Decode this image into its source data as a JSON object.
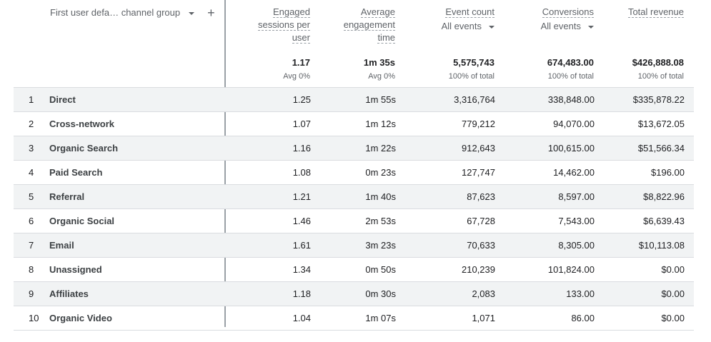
{
  "dimension": {
    "label": "First user defa… channel group",
    "add_label": "+"
  },
  "columns": [
    {
      "key": "engaged",
      "title_lines": [
        "Engaged",
        "sessions per",
        "user"
      ],
      "total": "1.17",
      "total_sub": "Avg 0%"
    },
    {
      "key": "avg_time",
      "title_lines": [
        "Average",
        "engagement",
        "time"
      ],
      "total": "1m 35s",
      "total_sub": "Avg 0%"
    },
    {
      "key": "events",
      "title_lines": [
        "Event count"
      ],
      "selector": "All events",
      "total": "5,575,743",
      "total_sub": "100% of total"
    },
    {
      "key": "conversions",
      "title_lines": [
        "Conversions"
      ],
      "selector": "All events",
      "total": "674,483.00",
      "total_sub": "100% of total"
    },
    {
      "key": "revenue",
      "title_lines": [
        "Total revenue"
      ],
      "total": "$426,888.08",
      "total_sub": "100% of total"
    }
  ],
  "rows": [
    {
      "index": "1",
      "name": "Direct",
      "engaged": "1.25",
      "avg_time": "1m 55s",
      "events": "3,316,764",
      "conversions": "338,848.00",
      "revenue": "$335,878.22"
    },
    {
      "index": "2",
      "name": "Cross-network",
      "engaged": "1.07",
      "avg_time": "1m 12s",
      "events": "779,212",
      "conversions": "94,070.00",
      "revenue": "$13,672.05"
    },
    {
      "index": "3",
      "name": "Organic Search",
      "engaged": "1.16",
      "avg_time": "1m 22s",
      "events": "912,643",
      "conversions": "100,615.00",
      "revenue": "$51,566.34"
    },
    {
      "index": "4",
      "name": "Paid Search",
      "engaged": "1.08",
      "avg_time": "0m 23s",
      "events": "127,747",
      "conversions": "14,462.00",
      "revenue": "$196.00"
    },
    {
      "index": "5",
      "name": "Referral",
      "engaged": "1.21",
      "avg_time": "1m 40s",
      "events": "87,623",
      "conversions": "8,597.00",
      "revenue": "$8,822.96"
    },
    {
      "index": "6",
      "name": "Organic Social",
      "engaged": "1.46",
      "avg_time": "2m 53s",
      "events": "67,728",
      "conversions": "7,543.00",
      "revenue": "$6,639.43"
    },
    {
      "index": "7",
      "name": "Email",
      "engaged": "1.61",
      "avg_time": "3m 23s",
      "events": "70,633",
      "conversions": "8,305.00",
      "revenue": "$10,113.08"
    },
    {
      "index": "8",
      "name": "Unassigned",
      "engaged": "1.34",
      "avg_time": "0m 50s",
      "events": "210,239",
      "conversions": "101,824.00",
      "revenue": "$0.00"
    },
    {
      "index": "9",
      "name": "Affiliates",
      "engaged": "1.18",
      "avg_time": "0m 30s",
      "events": "2,083",
      "conversions": "133.00",
      "revenue": "$0.00"
    },
    {
      "index": "10",
      "name": "Organic Video",
      "engaged": "1.04",
      "avg_time": "1m 07s",
      "events": "1,071",
      "conversions": "86.00",
      "revenue": "$0.00"
    }
  ]
}
